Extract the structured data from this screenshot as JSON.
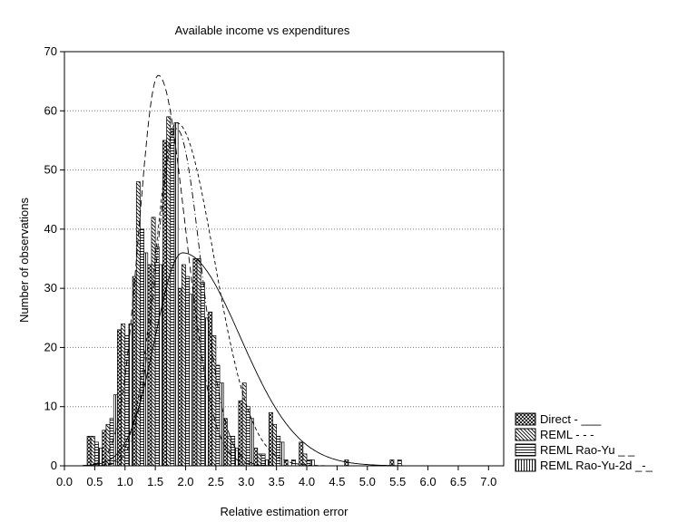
{
  "chart_data": {
    "type": "bar",
    "title": "Available income vs expenditures",
    "xlabel": "Relative estimation error",
    "ylabel": "Number of observations",
    "xlim": [
      0,
      7.25
    ],
    "ylim": [
      0,
      70
    ],
    "xticks": [
      "0.0",
      "0.5",
      "1.0",
      "1.5",
      "2.0",
      "2.5",
      "3.0",
      "3.5",
      "4.0",
      "4.5",
      "5.0",
      "5.5",
      "6.0",
      "6.5",
      "7.0"
    ],
    "yticks": [
      "0",
      "10",
      "20",
      "30",
      "40",
      "50",
      "60",
      "70"
    ],
    "grid": "horizontal dotted",
    "legend_position": "bottom-right",
    "bin_width": 0.25,
    "categories": [
      0.5,
      0.75,
      1.0,
      1.25,
      1.5,
      1.75,
      2.0,
      2.25,
      2.5,
      2.75,
      3.0,
      3.25,
      3.5,
      3.75,
      4.0,
      4.25,
      4.5,
      4.75,
      5.0,
      5.25,
      5.5,
      5.75
    ],
    "series": [
      {
        "name": "Direct - ___",
        "pattern": "crosshatch",
        "values": [
          5,
          6,
          23,
          32,
          34,
          55,
          30,
          35,
          26,
          8,
          11,
          3,
          9,
          1,
          4,
          0,
          0,
          1,
          0,
          0,
          1,
          0
        ]
      },
      {
        "name": "REML - - -",
        "pattern": "backslash",
        "values": [
          5,
          7,
          24,
          48,
          42,
          59,
          34,
          35,
          22,
          5,
          14,
          2,
          7,
          0,
          2,
          0,
          0,
          0,
          0,
          0,
          0,
          0
        ]
      },
      {
        "name": "REML Rao-Yu _ _",
        "pattern": "horizontal",
        "values": [
          4,
          8,
          22,
          40,
          37,
          57,
          32,
          31,
          17,
          5,
          10,
          2,
          5,
          1,
          1,
          0,
          0,
          0,
          0,
          0,
          1,
          0
        ]
      },
      {
        "name": "REML Rao-Yu-2d _-_",
        "pattern": "vertical",
        "values": [
          3,
          12,
          24,
          36,
          34,
          58,
          29,
          25,
          14,
          3,
          8,
          1,
          4,
          0,
          1,
          0,
          0,
          0,
          0,
          0,
          0,
          0
        ]
      }
    ],
    "fitted_curves": [
      {
        "series": "Direct - ___",
        "style": "solid",
        "peak_x": 1.95,
        "peak_y": 36,
        "spread_left": 0.45,
        "spread_right": 0.95
      },
      {
        "series": "REML - - -",
        "style": "dashed",
        "peak_x": 1.85,
        "peak_y": 58,
        "spread_left": 0.35,
        "spread_right": 0.62
      },
      {
        "series": "REML Rao-Yu _ _",
        "style": "long-dash",
        "peak_x": 1.55,
        "peak_y": 66,
        "spread_left": 0.32,
        "spread_right": 0.45
      },
      {
        "series": "REML Rao-Yu-2d _-_",
        "style": "dash-dot",
        "peak_x": 1.85,
        "peak_y": 57,
        "spread_left": 0.33,
        "spread_right": 0.4
      }
    ]
  }
}
